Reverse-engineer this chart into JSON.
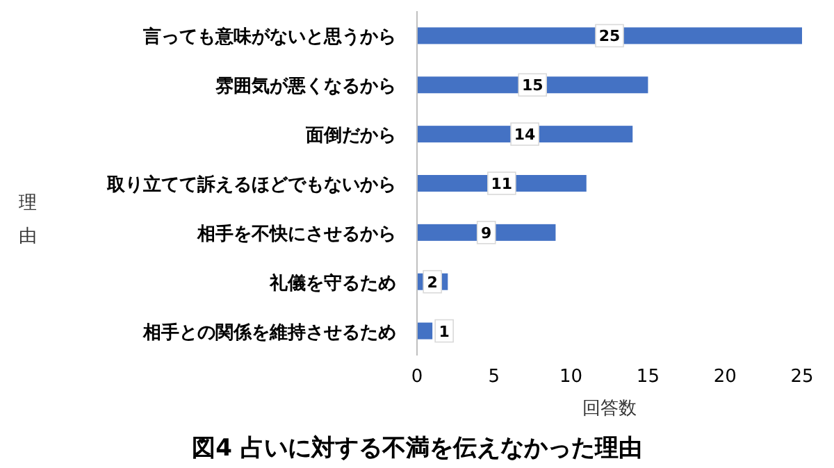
{
  "chart_data": {
    "type": "bar",
    "orientation": "horizontal",
    "title": "図4 占いに対する不満を伝えなかった理由",
    "xlabel": "回答数",
    "ylabel": "理由",
    "categories": [
      "言っても意味がないと思うから",
      "雰囲気が悪くなるから",
      "面倒だから",
      "取り立てて訴えるほどでもないから",
      "相手を不快にさせるから",
      "礼儀を守るため",
      "相手との関係を維持させるため"
    ],
    "values": [
      25,
      15,
      14,
      11,
      9,
      2,
      1
    ],
    "color": "#4472c4",
    "xlim": [
      0,
      25
    ],
    "xticks": [
      0,
      5,
      10,
      15,
      20,
      25
    ],
    "data_labels": true,
    "grid": false
  }
}
